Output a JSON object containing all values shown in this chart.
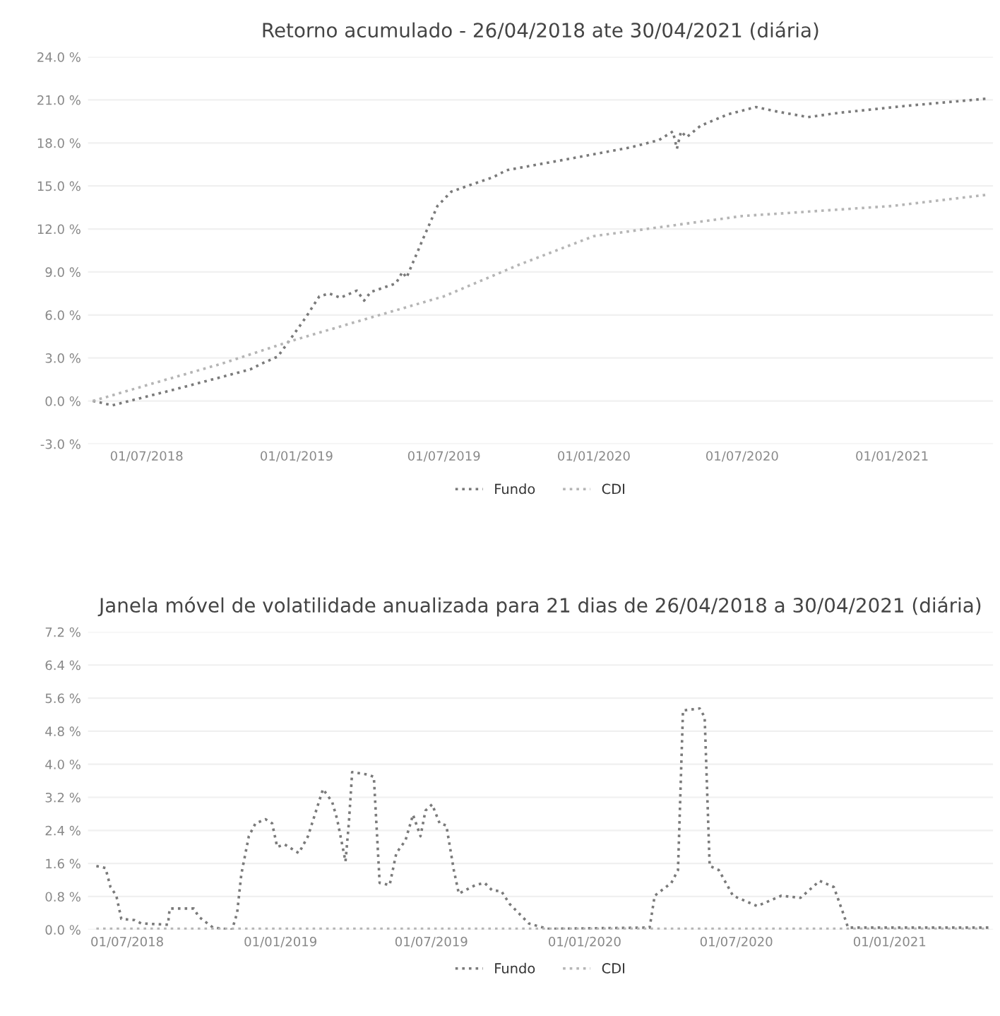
{
  "chart_data": [
    {
      "type": "line",
      "title": "Retorno acumulado - 26/04/2018 ate 30/04/2021 (diária)",
      "line_style": "dotted",
      "marker": "none",
      "grid": "y",
      "legend": "bottom",
      "xlim": [
        "2018-04-20",
        "2021-05-05"
      ],
      "ylim": [
        -3.0,
        24.0
      ],
      "xticks": [
        {
          "value": "2018-07-01",
          "label": "01/07/2018"
        },
        {
          "value": "2019-01-01",
          "label": "01/01/2019"
        },
        {
          "value": "2019-07-01",
          "label": "01/07/2019"
        },
        {
          "value": "2020-01-01",
          "label": "01/01/2020"
        },
        {
          "value": "2020-07-01",
          "label": "01/07/2020"
        },
        {
          "value": "2021-01-01",
          "label": "01/01/2021"
        }
      ],
      "yticks": [
        {
          "value": -3.0,
          "label": "-3.0 %"
        },
        {
          "value": 0.0,
          "label": "0.0 %"
        },
        {
          "value": 3.0,
          "label": "3.0 %"
        },
        {
          "value": 6.0,
          "label": "6.0 %"
        },
        {
          "value": 9.0,
          "label": "9.0 %"
        },
        {
          "value": 12.0,
          "label": "12.0 %"
        },
        {
          "value": 15.0,
          "label": "15.0 %"
        },
        {
          "value": 18.0,
          "label": "18.0 %"
        },
        {
          "value": 21.0,
          "label": "21.0 %"
        },
        {
          "value": 24.0,
          "label": "24.0 %"
        }
      ],
      "series": [
        {
          "name": "Fundo",
          "color": "#7a7a7a",
          "x": [
            "2018-04-26",
            "2018-05-20",
            "2018-08-04",
            "2018-11-05",
            "2018-11-19",
            "2018-12-09",
            "2018-12-18",
            "2019-01-12",
            "2019-01-29",
            "2019-02-10",
            "2019-02-24",
            "2019-03-16",
            "2019-03-25",
            "2019-04-02",
            "2019-05-03",
            "2019-05-11",
            "2019-05-16",
            "2019-06-06",
            "2019-06-23",
            "2019-07-10",
            "2019-08-04",
            "2019-08-30",
            "2019-09-16",
            "2019-11-23",
            "2020-02-16",
            "2020-03-21",
            "2020-04-07",
            "2020-04-12",
            "2020-04-17",
            "2020-04-24",
            "2020-05-11",
            "2020-06-14",
            "2020-07-18",
            "2020-08-12",
            "2020-09-20",
            "2020-10-28",
            "2021-01-21",
            "2021-04-30"
          ],
          "values": [
            0.0,
            -0.3,
            0.8,
            2.2,
            2.6,
            3.1,
            3.8,
            5.8,
            7.3,
            7.5,
            7.2,
            7.7,
            7.0,
            7.6,
            8.2,
            9.0,
            8.6,
            11.4,
            13.6,
            14.6,
            15.1,
            15.6,
            16.1,
            16.8,
            17.7,
            18.2,
            18.8,
            17.6,
            18.8,
            18.4,
            19.2,
            20.0,
            20.5,
            20.2,
            19.8,
            20.1,
            20.6,
            21.1
          ]
        },
        {
          "name": "CDI",
          "color": "#b5b5b5",
          "x": [
            "2018-04-26",
            "2018-07-01",
            "2018-10-01",
            "2019-01-01",
            "2019-04-01",
            "2019-07-01",
            "2019-10-01",
            "2020-01-01",
            "2020-07-01",
            "2021-01-01",
            "2021-04-30"
          ],
          "values": [
            0.0,
            1.1,
            2.6,
            4.3,
            5.8,
            7.3,
            9.5,
            11.5,
            12.9,
            13.6,
            14.4
          ]
        }
      ]
    },
    {
      "type": "line",
      "title": "Janela móvel de volatilidade anualizada para 21 dias de 26/04/2018 a 30/04/2021 (diária)",
      "line_style": "dotted",
      "marker": "none",
      "grid": "y",
      "legend": "bottom",
      "xlim": [
        "2018-05-15",
        "2021-05-05"
      ],
      "ylim": [
        0.0,
        7.2
      ],
      "xticks": [
        {
          "value": "2018-07-01",
          "label": "01/07/2018"
        },
        {
          "value": "2019-01-01",
          "label": "01/01/2019"
        },
        {
          "value": "2019-07-01",
          "label": "01/07/2019"
        },
        {
          "value": "2020-01-01",
          "label": "01/01/2020"
        },
        {
          "value": "2020-07-01",
          "label": "01/07/2020"
        },
        {
          "value": "2021-01-01",
          "label": "01/01/2021"
        }
      ],
      "yticks": [
        {
          "value": 0.0,
          "label": "0.0 %"
        },
        {
          "value": 0.8,
          "label": "0.8 %"
        },
        {
          "value": 1.6,
          "label": "1.6 %"
        },
        {
          "value": 2.4,
          "label": "2.4 %"
        },
        {
          "value": 3.2,
          "label": "3.2 %"
        },
        {
          "value": 4.0,
          "label": "4.0 %"
        },
        {
          "value": 4.8,
          "label": "4.8 %"
        },
        {
          "value": 5.6,
          "label": "5.6 %"
        },
        {
          "value": 6.4,
          "label": "6.4 %"
        },
        {
          "value": 7.2,
          "label": "7.2 %"
        }
      ],
      "series": [
        {
          "name": "Fundo",
          "color": "#7a7a7a",
          "x": [
            "2018-05-25",
            "2018-06-05",
            "2018-06-11",
            "2018-06-18",
            "2018-06-24",
            "2018-07-10",
            "2018-07-18",
            "2018-08-19",
            "2018-08-21",
            "2018-09-19",
            "2018-09-25",
            "2018-10-12",
            "2018-11-04",
            "2018-11-10",
            "2018-11-15",
            "2018-11-24",
            "2018-12-02",
            "2018-12-14",
            "2018-12-22",
            "2018-12-28",
            "2019-01-06",
            "2019-01-23",
            "2019-02-03",
            "2019-02-12",
            "2019-02-21",
            "2019-03-04",
            "2019-03-10",
            "2019-03-20",
            "2019-03-24",
            "2019-03-28",
            "2019-04-13",
            "2019-04-23",
            "2019-04-30",
            "2019-05-12",
            "2019-05-20",
            "2019-05-31",
            "2019-06-09",
            "2019-06-18",
            "2019-06-24",
            "2019-07-02",
            "2019-07-11",
            "2019-07-19",
            "2019-07-28",
            "2019-08-03",
            "2019-08-23",
            "2019-09-03",
            "2019-09-12",
            "2019-09-23",
            "2019-10-03",
            "2019-10-26",
            "2019-11-17",
            "2020-03-19",
            "2020-03-25",
            "2020-04-14",
            "2020-04-22",
            "2020-04-28",
            "2020-05-18",
            "2020-05-24",
            "2020-05-30",
            "2020-06-10",
            "2020-06-27",
            "2020-07-26",
            "2020-08-24",
            "2020-09-16",
            "2020-10-09",
            "2020-10-26",
            "2020-11-06",
            "2020-11-12",
            "2021-04-30"
          ],
          "values": [
            1.54,
            1.49,
            1.03,
            0.82,
            0.26,
            0.23,
            0.15,
            0.12,
            0.51,
            0.51,
            0.31,
            0.05,
            0.0,
            0.41,
            1.34,
            2.26,
            2.57,
            2.67,
            2.57,
            2.0,
            2.06,
            1.85,
            2.26,
            2.83,
            3.4,
            3.09,
            2.67,
            1.65,
            2.57,
            3.81,
            3.76,
            3.7,
            1.13,
            1.08,
            1.85,
            2.16,
            2.78,
            2.26,
            2.88,
            3.03,
            2.57,
            2.52,
            1.44,
            0.87,
            1.08,
            1.13,
            0.95,
            0.93,
            0.62,
            0.15,
            0.02,
            0.05,
            0.82,
            1.13,
            1.44,
            5.3,
            5.35,
            5.14,
            1.54,
            1.44,
            0.82,
            0.57,
            0.82,
            0.77,
            1.18,
            1.03,
            0.41,
            0.05,
            0.05
          ]
        },
        {
          "name": "CDI",
          "color": "#b5b5b5",
          "x": [
            "2018-05-25",
            "2019-07-01",
            "2020-07-01",
            "2021-04-30"
          ],
          "values": [
            0.02,
            0.02,
            0.02,
            0.02
          ]
        }
      ]
    }
  ]
}
